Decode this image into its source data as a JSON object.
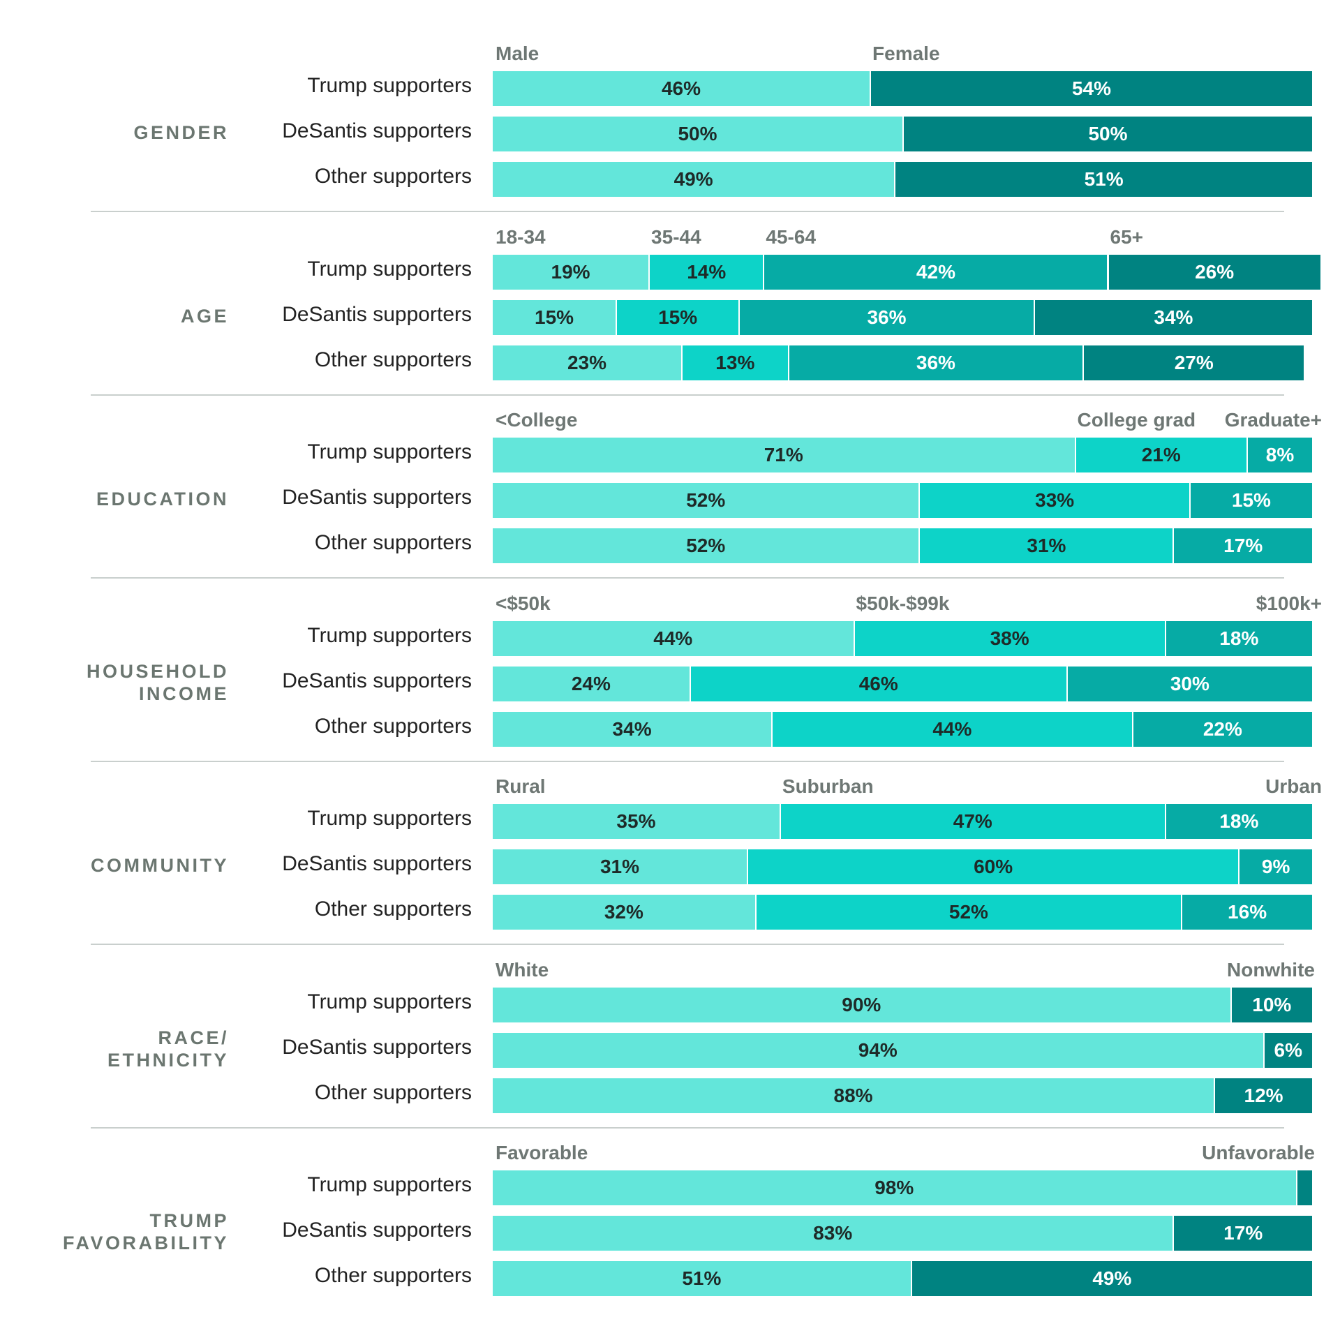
{
  "colors": {
    "c1": "#63e6da",
    "c2": "#0dd3c8",
    "c3": "#06aba5",
    "c4": "#008381",
    "dark_text": "#1e2a28",
    "light_text": "#ffffff"
  },
  "chart_data": {
    "type": "bar",
    "orientation": "horizontal",
    "stacked": "percent",
    "title": "",
    "xlabel": "",
    "ylabel": "",
    "xlim": [
      0,
      100
    ],
    "grid": false,
    "legend": "category labels above each section",
    "sections": [
      {
        "label": "GENDER",
        "categories": [
          "Male",
          "Female"
        ],
        "category_colors": [
          "c1",
          "c4"
        ],
        "rows": [
          {
            "name": "Trump supporters",
            "values": [
              46,
              54
            ],
            "labels": [
              "46%",
              "54%"
            ]
          },
          {
            "name": "DeSantis supporters",
            "values": [
              50,
              50
            ],
            "labels": [
              "50%",
              "50%"
            ]
          },
          {
            "name": "Other supporters",
            "values": [
              49,
              51
            ],
            "labels": [
              "49%",
              "51%"
            ]
          }
        ]
      },
      {
        "label": "AGE",
        "categories": [
          "18-34",
          "35-44",
          "45-64",
          "65+"
        ],
        "category_colors": [
          "c1",
          "c2",
          "c3",
          "c4"
        ],
        "rows": [
          {
            "name": "Trump supporters",
            "values": [
              19,
              14,
              42,
              26
            ],
            "labels": [
              "19%",
              "14%",
              "42%",
              "26%"
            ]
          },
          {
            "name": "DeSantis supporters",
            "values": [
              15,
              15,
              36,
              34
            ],
            "labels": [
              "15%",
              "15%",
              "36%",
              "34%"
            ]
          },
          {
            "name": "Other supporters",
            "values": [
              23,
              13,
              36,
              27
            ],
            "labels": [
              "23%",
              "13%",
              "36%",
              "27%"
            ]
          }
        ]
      },
      {
        "label": "EDUCATION",
        "categories": [
          "<College",
          "College grad",
          "Graduate+"
        ],
        "category_colors": [
          "c1",
          "c2",
          "c3"
        ],
        "rows": [
          {
            "name": "Trump supporters",
            "values": [
              71,
              21,
              8
            ],
            "labels": [
              "71%",
              "21%",
              "8%"
            ]
          },
          {
            "name": "DeSantis supporters",
            "values": [
              52,
              33,
              15
            ],
            "labels": [
              "52%",
              "33%",
              "15%"
            ]
          },
          {
            "name": "Other supporters",
            "values": [
              52,
              31,
              17
            ],
            "labels": [
              "52%",
              "31%",
              "17%"
            ]
          }
        ]
      },
      {
        "label": "HOUSEHOLD\nINCOME",
        "categories": [
          "<$50k",
          "$50k-$99k",
          "$100k+"
        ],
        "category_colors": [
          "c1",
          "c2",
          "c3"
        ],
        "rows": [
          {
            "name": "Trump supporters",
            "values": [
              44,
              38,
              18
            ],
            "labels": [
              "44%",
              "38%",
              "18%"
            ]
          },
          {
            "name": "DeSantis supporters",
            "values": [
              24,
              46,
              30
            ],
            "labels": [
              "24%",
              "46%",
              "30%"
            ]
          },
          {
            "name": "Other supporters",
            "values": [
              34,
              44,
              22
            ],
            "labels": [
              "34%",
              "44%",
              "22%"
            ]
          }
        ]
      },
      {
        "label": "COMMUNITY",
        "categories": [
          "Rural",
          "Suburban",
          "Urban"
        ],
        "category_colors": [
          "c1",
          "c2",
          "c3"
        ],
        "rows": [
          {
            "name": "Trump supporters",
            "values": [
              35,
              47,
              18
            ],
            "labels": [
              "35%",
              "47%",
              "18%"
            ]
          },
          {
            "name": "DeSantis supporters",
            "values": [
              31,
              60,
              9
            ],
            "labels": [
              "31%",
              "60%",
              "9%"
            ]
          },
          {
            "name": "Other supporters",
            "values": [
              32,
              52,
              16
            ],
            "labels": [
              "32%",
              "52%",
              "16%"
            ]
          }
        ]
      },
      {
        "label": "RACE/\nETHNICITY",
        "categories": [
          "White",
          "Nonwhite"
        ],
        "category_colors": [
          "c1",
          "c4"
        ],
        "rows": [
          {
            "name": "Trump supporters",
            "values": [
              90,
              10
            ],
            "labels": [
              "90%",
              "10%"
            ]
          },
          {
            "name": "DeSantis supporters",
            "values": [
              94,
              6
            ],
            "labels": [
              "94%",
              "6%"
            ]
          },
          {
            "name": "Other supporters",
            "values": [
              88,
              12
            ],
            "labels": [
              "88%",
              "12%"
            ]
          }
        ]
      },
      {
        "label": "TRUMP\nFAVORABILITY",
        "categories": [
          "Favorable",
          "Unfavorable"
        ],
        "category_colors": [
          "c1",
          "c4"
        ],
        "rows": [
          {
            "name": "Trump supporters",
            "values": [
              98,
              2
            ],
            "labels": [
              "98%",
              ""
            ]
          },
          {
            "name": "DeSantis supporters",
            "values": [
              83,
              17
            ],
            "labels": [
              "83%",
              "17%"
            ]
          },
          {
            "name": "Other supporters",
            "values": [
              51,
              49
            ],
            "labels": [
              "51%",
              "49%"
            ]
          }
        ]
      }
    ]
  }
}
